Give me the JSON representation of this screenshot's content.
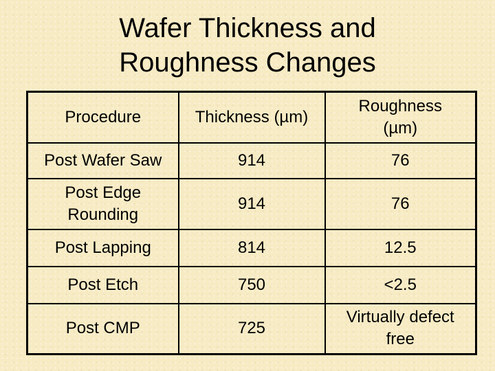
{
  "title": {
    "line1": "Wafer Thickness and",
    "line2": "Roughness Changes"
  },
  "table": {
    "headers": {
      "procedure": "Procedure",
      "thickness": "Thickness (µm)",
      "roughness_line1": "Roughness",
      "roughness_line2": "(µm)"
    },
    "rows": [
      {
        "procedure": "Post Wafer Saw",
        "thickness": "914",
        "roughness": "76"
      },
      {
        "procedure_line1": "Post Edge",
        "procedure_line2": "Rounding",
        "thickness": "914",
        "roughness": "76"
      },
      {
        "procedure": "Post Lapping",
        "thickness": "814",
        "roughness": "12.5"
      },
      {
        "procedure": "Post Etch",
        "thickness": "750",
        "roughness": "<2.5"
      },
      {
        "procedure": "Post CMP",
        "thickness": "725",
        "roughness_line1": "Virtually defect",
        "roughness_line2": "free"
      }
    ]
  }
}
